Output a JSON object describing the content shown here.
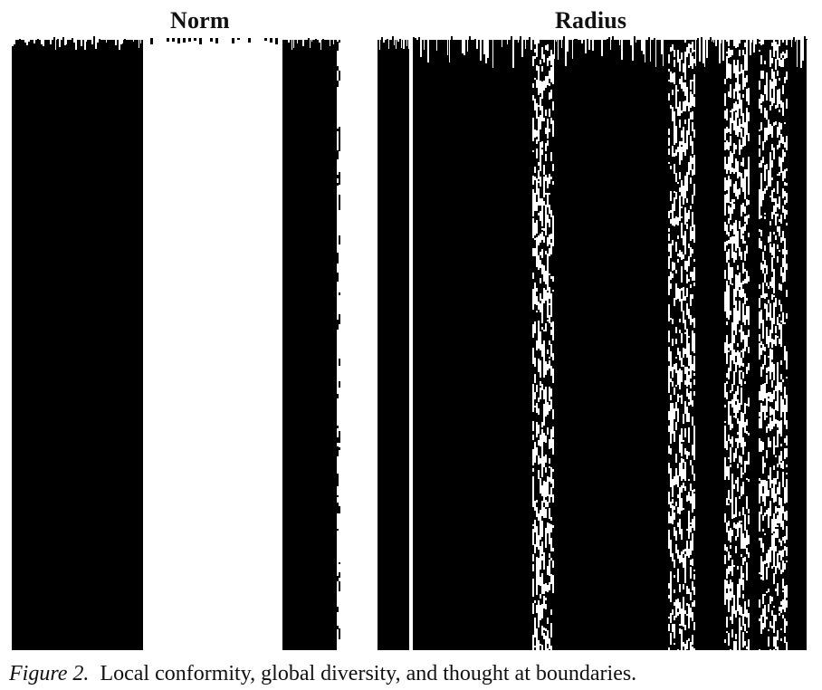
{
  "figure": {
    "labels": {
      "norm": "Norm",
      "radius": "Radius"
    },
    "caption": {
      "number": "Figure 2.",
      "text": "Local conformity, global diversity, and thought at boundaries."
    },
    "colors": {
      "foreground": "#000000",
      "background": "#ffffff"
    }
  }
}
